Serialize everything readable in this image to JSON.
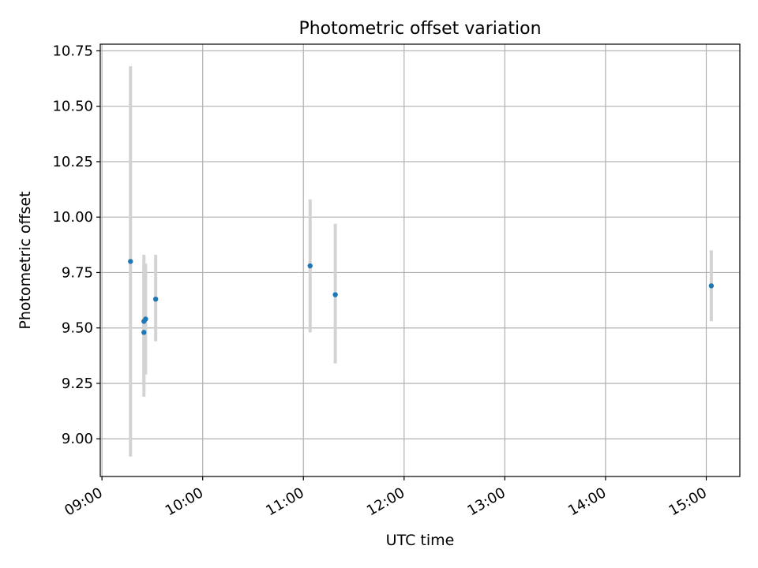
{
  "chart_data": {
    "type": "scatter",
    "title": "Photometric offset variation",
    "xlabel": "UTC time",
    "ylabel": "Photometric offset",
    "x_tick_labels": [
      "09:00",
      "10:00",
      "11:00",
      "12:00",
      "13:00",
      "14:00",
      "15:00"
    ],
    "y_tick_labels": [
      "9.00",
      "9.25",
      "9.50",
      "9.75",
      "10.00",
      "10.25",
      "10.50",
      "10.75"
    ],
    "x_ticks": [
      "09:00",
      "10:00",
      "11:00",
      "12:00",
      "13:00",
      "14:00",
      "15:00"
    ],
    "y_ticks": [
      9.0,
      9.25,
      9.5,
      9.75,
      10.0,
      10.25,
      10.5,
      10.75
    ],
    "xlim": [
      "08:59",
      "15:20"
    ],
    "ylim": [
      8.83,
      10.78
    ],
    "grid": true,
    "points": [
      {
        "x": "09:17",
        "y": 9.8,
        "err_low": 8.92,
        "err_high": 10.68
      },
      {
        "x": "09:25",
        "y": 9.48,
        "err_low": 9.19,
        "err_high": 9.79
      },
      {
        "x": "09:25",
        "y": 9.53,
        "err_low": 9.24,
        "err_high": 9.83
      },
      {
        "x": "09:26",
        "y": 9.54,
        "err_low": 9.29,
        "err_high": 9.79
      },
      {
        "x": "09:32",
        "y": 9.63,
        "err_low": 9.44,
        "err_high": 9.83
      },
      {
        "x": "11:04",
        "y": 9.78,
        "err_low": 9.48,
        "err_high": 10.08
      },
      {
        "x": "11:19",
        "y": 9.65,
        "err_low": 9.34,
        "err_high": 9.97
      },
      {
        "x": "15:03",
        "y": 9.69,
        "err_low": 9.53,
        "err_high": 9.85
      }
    ],
    "colors": {
      "marker": "#1f77b4",
      "errorbar": "#d3d3d3",
      "grid": "#b0b0b0"
    }
  }
}
